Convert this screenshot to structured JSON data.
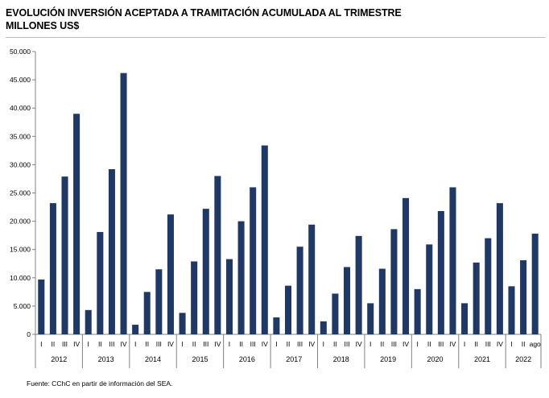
{
  "header": {
    "title_line1": "EVOLUCIÓN INVERSIÓN ACEPTADA A TRAMITACIÓN ACUMULADA AL TRIMESTRE",
    "title_line2": "MILLONES US$"
  },
  "footer": {
    "source": "Fuente: CChC en partir de información del SEA."
  },
  "colors": {
    "bar": "#1f3864",
    "axis": "#808080"
  },
  "chart_data": {
    "type": "bar",
    "title": "EVOLUCIÓN INVERSIÓN ACEPTADA A TRAMITACIÓN ACUMULADA AL TRIMESTRE",
    "ylabel": "MILLONES US$",
    "xlabel": "",
    "ylim": [
      0,
      50000
    ],
    "yticks": [
      "0",
      "5.000",
      "10.000",
      "15.000",
      "20.000",
      "25.000",
      "30.000",
      "35.000",
      "40.000",
      "45.000",
      "50.000"
    ],
    "grid": false,
    "legend": "none",
    "groups": [
      {
        "year": "2012",
        "categories": [
          "I",
          "II",
          "III",
          "IV"
        ],
        "values": [
          9700,
          23200,
          27900,
          39000
        ]
      },
      {
        "year": "2013",
        "categories": [
          "I",
          "II",
          "III",
          "IV"
        ],
        "values": [
          4300,
          18100,
          29200,
          46200
        ]
      },
      {
        "year": "2014",
        "categories": [
          "I",
          "II",
          "III",
          "IV"
        ],
        "values": [
          1700,
          7500,
          11500,
          21200
        ]
      },
      {
        "year": "2015",
        "categories": [
          "I",
          "II",
          "III",
          "IV"
        ],
        "values": [
          3800,
          12900,
          22200,
          28000
        ]
      },
      {
        "year": "2016",
        "categories": [
          "I",
          "II",
          "III",
          "IV"
        ],
        "values": [
          13300,
          20000,
          26000,
          33400
        ]
      },
      {
        "year": "2017",
        "categories": [
          "I",
          "II",
          "III",
          "IV"
        ],
        "values": [
          3000,
          8600,
          15500,
          19400
        ]
      },
      {
        "year": "2018",
        "categories": [
          "I",
          "II",
          "III",
          "IV"
        ],
        "values": [
          2300,
          7200,
          11900,
          17400
        ]
      },
      {
        "year": "2019",
        "categories": [
          "I",
          "II",
          "III",
          "IV"
        ],
        "values": [
          5500,
          11600,
          18600,
          24100
        ]
      },
      {
        "year": "2020",
        "categories": [
          "I",
          "II",
          "III",
          "IV"
        ],
        "values": [
          8000,
          15900,
          21800,
          26000
        ]
      },
      {
        "year": "2021",
        "categories": [
          "I",
          "II",
          "III",
          "IV"
        ],
        "values": [
          5500,
          12700,
          17000,
          23200
        ]
      },
      {
        "year": "2022",
        "categories": [
          "I",
          "II",
          "ago"
        ],
        "values": [
          8500,
          13100,
          17800
        ]
      }
    ]
  }
}
